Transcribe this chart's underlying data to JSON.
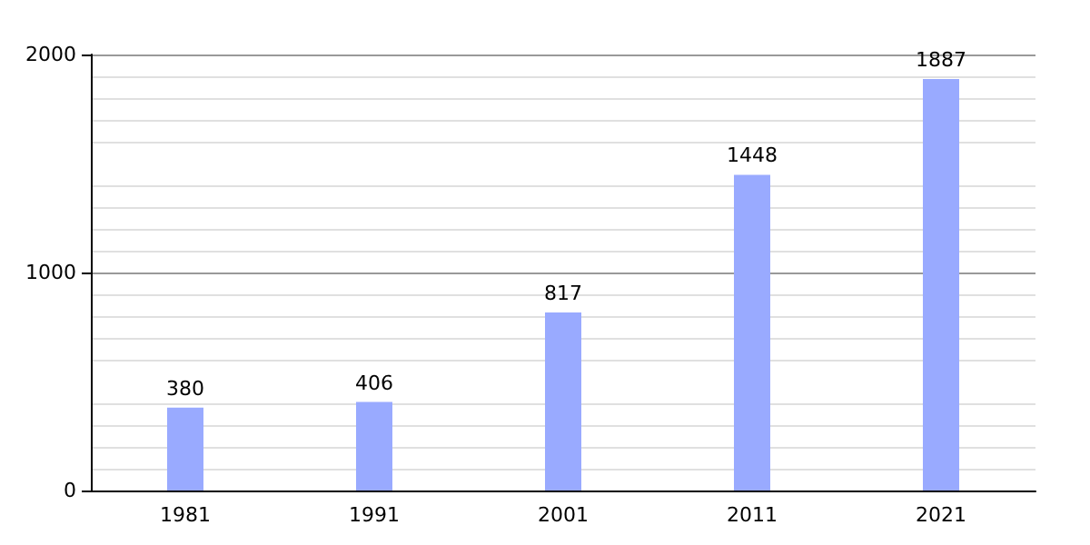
{
  "chart_data": {
    "type": "bar",
    "categories": [
      "1981",
      "1991",
      "2001",
      "2011",
      "2021"
    ],
    "values": [
      380,
      406,
      817,
      1448,
      1887
    ],
    "color": "#99aaff",
    "ylim": [
      0,
      2000
    ],
    "yticks": [
      0,
      1000,
      2000
    ],
    "grid": true,
    "data_labels": true
  }
}
